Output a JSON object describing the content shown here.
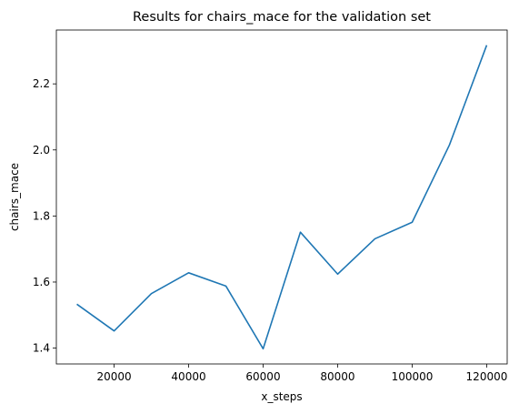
{
  "chart_data": {
    "type": "line",
    "title": "Results for chairs_mace for the validation set",
    "xlabel": "x_steps",
    "ylabel": "chairs_mace",
    "x": [
      10000,
      20000,
      30000,
      40000,
      50000,
      60000,
      70000,
      80000,
      90000,
      100000,
      110000,
      120000
    ],
    "series": [
      {
        "values": [
          1.533,
          1.452,
          1.565,
          1.628,
          1.588,
          1.398,
          1.751,
          1.624,
          1.731,
          1.781,
          2.015,
          2.317
        ],
        "color": "#1f77b4"
      }
    ],
    "xticks": [
      20000,
      40000,
      60000,
      80000,
      100000,
      120000
    ],
    "xtick_labels": [
      "20000",
      "40000",
      "60000",
      "80000",
      "100000",
      "120000"
    ],
    "yticks": [
      1.4,
      1.6,
      1.8,
      2.0,
      2.2
    ],
    "ytick_labels": [
      "1.4",
      "1.6",
      "1.8",
      "2.0",
      "2.2"
    ],
    "xlim": [
      4500,
      125500
    ],
    "ylim": [
      1.352,
      2.363
    ],
    "grid": false,
    "legend": "none"
  }
}
